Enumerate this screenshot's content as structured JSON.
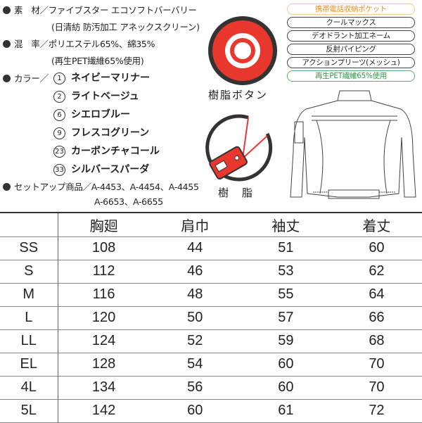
{
  "specs": {
    "material_label": "素　材／ファイブスター エコソフトバーバリー",
    "material_sub": "(日清紡 防汚加工 アネックスクリーン)",
    "blend_label": "混　率／ポリエステル65%、綿35%",
    "blend_sub": "(再生PET繊維65%使用)",
    "color_label": "カラー／",
    "colors": [
      {
        "no": "1",
        "name": "ネイビーマリナー"
      },
      {
        "no": "2",
        "name": "ライトベージュ"
      },
      {
        "no": "6",
        "name": "シエロブルー"
      },
      {
        "no": "9",
        "name": "フレスコグリーン"
      },
      {
        "no": "23",
        "name": "カーボンチャコール"
      },
      {
        "no": "33",
        "name": "シルバースパーダ"
      }
    ],
    "setup_label": "セットアップ商品／A-4453、A-4454、A-4455",
    "setup_sub": "A-6653、A-6655"
  },
  "features": [
    {
      "label": "携帯電話収納ポケット",
      "color": "#e8902a",
      "border": "#f0c890"
    },
    {
      "label": "クールマックス",
      "color": "#222",
      "border": "#444"
    },
    {
      "label": "デオドラント加工ネーム",
      "color": "#222",
      "border": "#444"
    },
    {
      "label": "反射パイピング",
      "color": "#222",
      "border": "#444"
    },
    {
      "label": "アクションプリーツ(メッシュ)",
      "color": "#222",
      "border": "#444"
    },
    {
      "label": "再生PET繊維65%使用",
      "color": "#2a9a4a",
      "border": "#5ab070"
    }
  ],
  "button_caption": "樹脂ボタン",
  "tag_caption": "樹　脂",
  "accent_red": "#e8382e",
  "size_table": {
    "headers": [
      "",
      "胸廻",
      "肩巾",
      "袖丈",
      "着丈"
    ],
    "rows": [
      [
        "SS",
        "108",
        "44",
        "51",
        "60"
      ],
      [
        "S",
        "112",
        "46",
        "53",
        "62"
      ],
      [
        "M",
        "116",
        "48",
        "55",
        "64"
      ],
      [
        "L",
        "120",
        "50",
        "57",
        "66"
      ],
      [
        "LL",
        "124",
        "52",
        "59",
        "68"
      ],
      [
        "EL",
        "128",
        "54",
        "60",
        "70"
      ],
      [
        "4L",
        "134",
        "56",
        "60",
        "70"
      ],
      [
        "5L",
        "142",
        "60",
        "61",
        "72"
      ]
    ]
  }
}
